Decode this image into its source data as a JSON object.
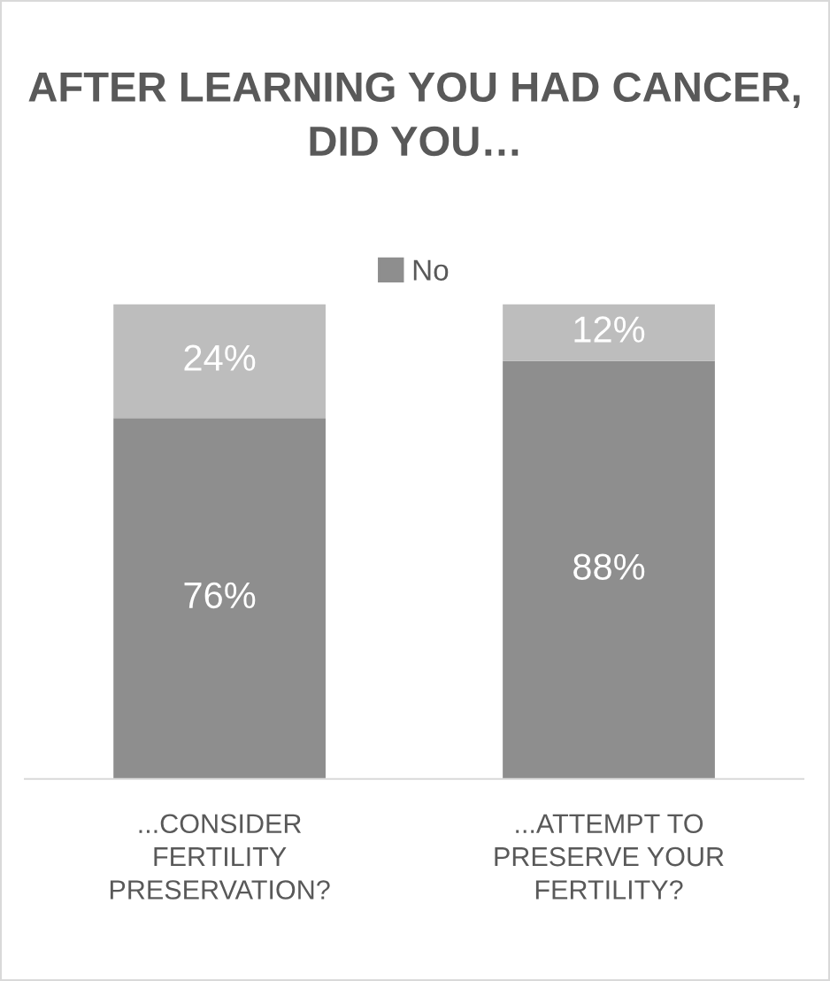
{
  "chart_data": {
    "type": "bar",
    "stacked": true,
    "title": "AFTER LEARNING YOU HAD CANCER, DID YOU…",
    "categories": [
      "...CONSIDER FERTILITY PRESERVATION?",
      "...ATTEMPT TO PRESERVE YOUR FERTILITY?"
    ],
    "series": [
      {
        "name": "No",
        "color": "#8e8e8e",
        "values": [
          76,
          88
        ],
        "value_labels": [
          "76%",
          "88%"
        ]
      },
      {
        "color": "#bdbdbd",
        "values": [
          24,
          12
        ],
        "value_labels": [
          "24%",
          "12%"
        ]
      }
    ],
    "legend": "top",
    "tick_labels": "x",
    "grid": false
  }
}
